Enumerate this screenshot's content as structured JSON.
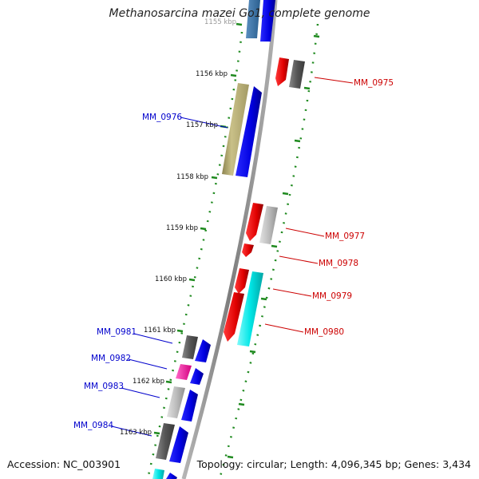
{
  "title": "Methanosarcina mazei Go1, complete genome",
  "footer": {
    "accession": "Accession: NC_003901",
    "summary": "Topology: circular; Length: 4,096,345 bp; Genes: 3,434"
  },
  "colors": {
    "backbone": "#8a8a8a",
    "tick_dotted": "#1f8a1f",
    "tick_major": "#1f8a1f",
    "label_forward": "#cc0000",
    "label_reverse": "#0000cc"
  },
  "kbp_labels": [
    {
      "text": "1155 kbp"
    },
    {
      "text": "1156 kbp"
    },
    {
      "text": "1157 kbp"
    },
    {
      "text": "1158 kbp"
    },
    {
      "text": "1159 kbp"
    },
    {
      "text": "1160 kbp"
    },
    {
      "text": "1161 kbp"
    },
    {
      "text": "1162 kbp"
    },
    {
      "text": "1163 kbp"
    }
  ],
  "gene_labels": [
    {
      "id": "MM_0975",
      "strand": "forward"
    },
    {
      "id": "MM_0976",
      "strand": "reverse"
    },
    {
      "id": "MM_0977",
      "strand": "forward"
    },
    {
      "id": "MM_0978",
      "strand": "forward"
    },
    {
      "id": "MM_0979",
      "strand": "forward"
    },
    {
      "id": "MM_0980",
      "strand": "forward"
    },
    {
      "id": "MM_0981",
      "strand": "reverse"
    },
    {
      "id": "MM_0982",
      "strand": "reverse"
    },
    {
      "id": "MM_0983",
      "strand": "reverse"
    },
    {
      "id": "MM_0984",
      "strand": "reverse"
    }
  ]
}
